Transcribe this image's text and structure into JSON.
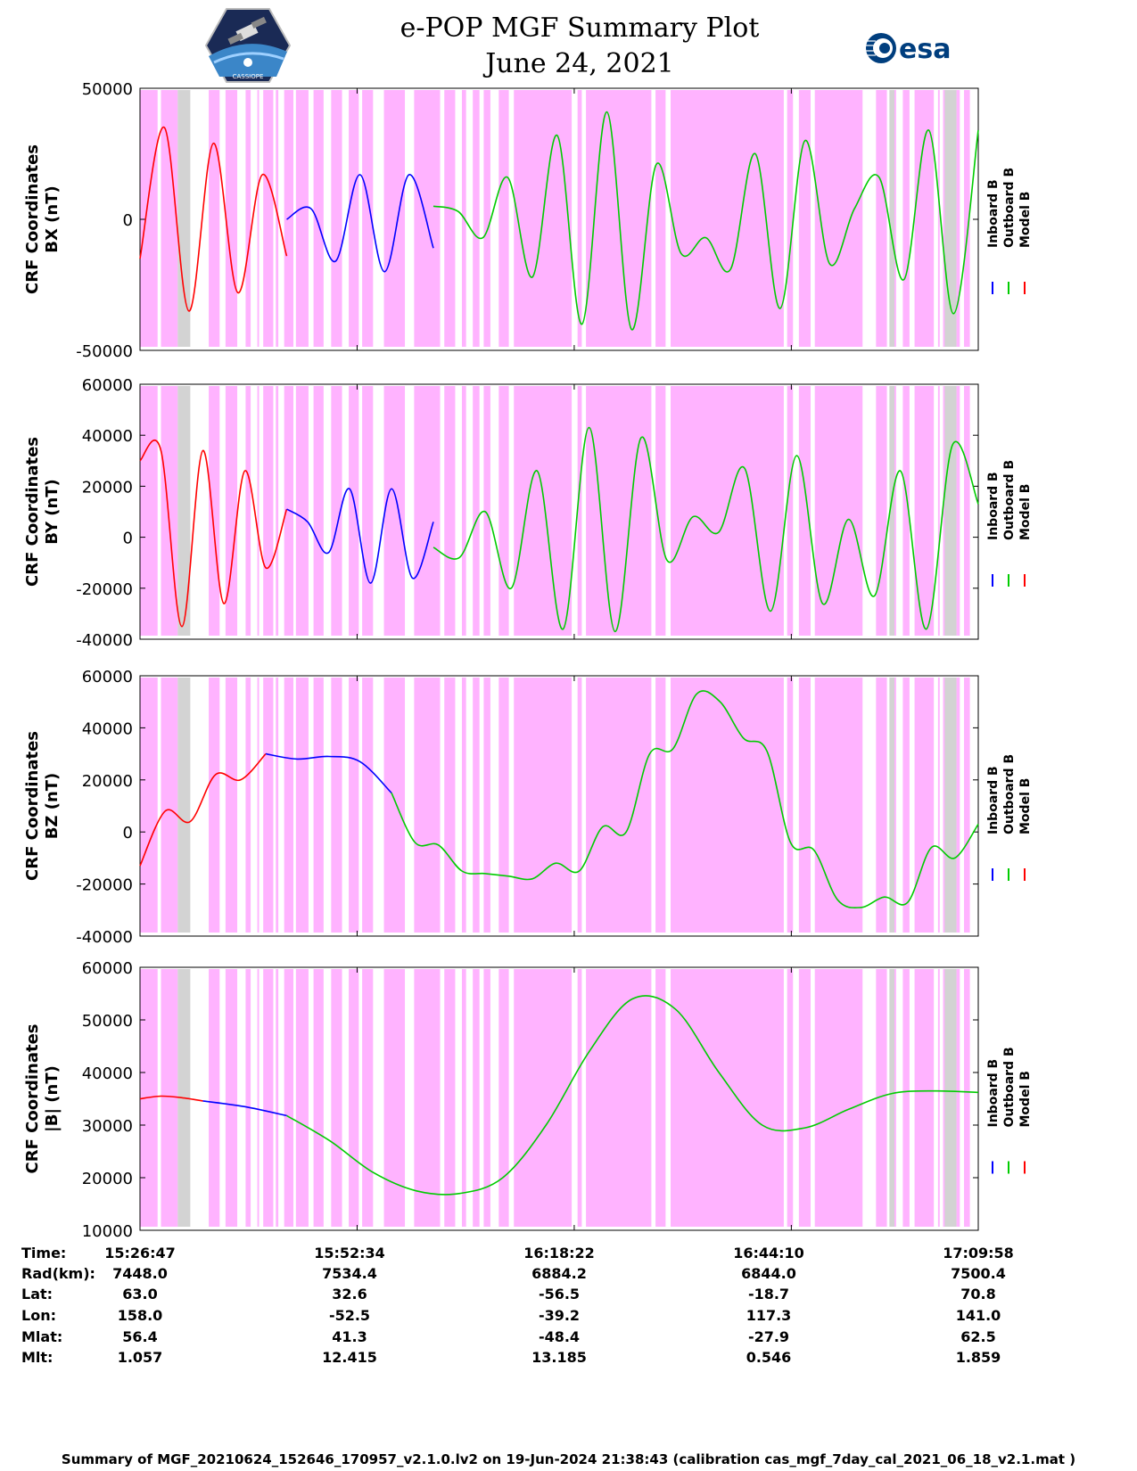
{
  "title": {
    "line1": "e-POP MGF Summary Plot",
    "line2": "June 24, 2021"
  },
  "logos": {
    "left_caption": "CASSIOPE",
    "right_text": "esa"
  },
  "colors": {
    "inboard": "#0000ff",
    "outboard": "#00cc00",
    "model": "#ff0000",
    "pink": "#ffb3ff",
    "gray": "#d3d3d3"
  },
  "legend": {
    "inboard": "Inboard B",
    "outboard": "Outboard B",
    "model": "Model B"
  },
  "chart_data": [
    {
      "type": "line",
      "panel": "BX",
      "ylabel_line1": "CRF Coordinates",
      "ylabel_line2": "BX (nT)",
      "ylim": [
        -50000,
        50000
      ],
      "yticks": [
        -50000,
        0,
        50000
      ],
      "ytick_labels": [
        "-50000",
        "0",
        "50000"
      ],
      "series": [
        {
          "name": "Model B",
          "color": "#ff0000",
          "x_range_min": [
            0,
            35
          ],
          "samples": [
            -15000,
            35000,
            -35000,
            29000,
            -28000,
            17000,
            -14000
          ]
        },
        {
          "name": "Inboard B",
          "color": "#0000ff",
          "x_range_min": [
            35,
            70
          ],
          "samples": [
            0,
            4000,
            -16000,
            17000,
            -20000,
            17000,
            -11000
          ]
        },
        {
          "name": "Outboard B",
          "color": "#00cc00",
          "x_range_min": [
            70,
            200
          ],
          "samples": [
            5000,
            3000,
            -7000,
            16000,
            -22000,
            32000,
            -40000,
            41000,
            -42000,
            21000,
            -13000,
            -7000,
            -19000,
            25000,
            -34000,
            30000,
            -17000,
            4000,
            16000,
            -23000,
            34000,
            -36000,
            34000
          ]
        }
      ]
    },
    {
      "type": "line",
      "panel": "BY",
      "ylabel_line1": "CRF Coordinates",
      "ylabel_line2": "BY (nT)",
      "ylim": [
        -40000,
        60000
      ],
      "yticks": [
        -40000,
        -20000,
        0,
        20000,
        40000,
        60000
      ],
      "ytick_labels": [
        "-40000",
        "-20000",
        "0",
        "20000",
        "40000",
        "60000"
      ],
      "series": [
        {
          "name": "Model B",
          "color": "#ff0000",
          "x_range_min": [
            0,
            35
          ],
          "samples": [
            30000,
            34000,
            -35000,
            34000,
            -26000,
            26000,
            -12000,
            11000
          ]
        },
        {
          "name": "Inboard B",
          "color": "#0000ff",
          "x_range_min": [
            35,
            70
          ],
          "samples": [
            11000,
            6000,
            -6000,
            19000,
            -18000,
            19000,
            -16000,
            6000
          ]
        },
        {
          "name": "Outboard B",
          "color": "#00cc00",
          "x_range_min": [
            70,
            200
          ],
          "samples": [
            -4000,
            -8000,
            10000,
            -20000,
            26000,
            -36000,
            43000,
            -37000,
            39000,
            -9000,
            8000,
            2000,
            27000,
            -29000,
            32000,
            -26000,
            7000,
            -23000,
            26000,
            -36000,
            36000,
            13000
          ]
        }
      ]
    },
    {
      "type": "line",
      "panel": "BZ",
      "ylabel_line1": "CRF Coordinates",
      "ylabel_line2": "BZ (nT)",
      "ylim": [
        -40000,
        60000
      ],
      "yticks": [
        -40000,
        -20000,
        0,
        20000,
        40000,
        60000
      ],
      "ytick_labels": [
        "-40000",
        "-20000",
        "0",
        "20000",
        "40000",
        "60000"
      ],
      "series": [
        {
          "name": "Model B",
          "color": "#ff0000",
          "x_range_min": [
            0,
            30
          ],
          "samples": [
            -13000,
            8000,
            4000,
            22000,
            20000,
            30000
          ]
        },
        {
          "name": "Inboard B",
          "color": "#0000ff",
          "x_range_min": [
            30,
            60
          ],
          "samples": [
            30000,
            28000,
            29000,
            27000,
            15000
          ]
        },
        {
          "name": "Outboard B",
          "color": "#00cc00",
          "x_range_min": [
            60,
            200
          ],
          "samples": [
            15000,
            -4000,
            -5000,
            -15000,
            -16000,
            -17000,
            -18000,
            -12000,
            -15000,
            2000,
            0,
            30000,
            32000,
            53000,
            50000,
            36000,
            31000,
            -4000,
            -7000,
            -26000,
            -29000,
            -25000,
            -27000,
            -6000,
            -10000,
            3000
          ]
        }
      ]
    },
    {
      "type": "line",
      "panel": "|B|",
      "ylabel_line1": "CRF Coordinates",
      "ylabel_line2": "|B| (nT)",
      "ylim": [
        10000,
        60000
      ],
      "yticks": [
        10000,
        20000,
        30000,
        40000,
        50000,
        60000
      ],
      "ytick_labels": [
        "10000",
        "20000",
        "30000",
        "40000",
        "50000",
        "60000"
      ],
      "series": [
        {
          "name": "Model B",
          "color": "#ff0000",
          "x_range_min": [
            0,
            15
          ],
          "samples": [
            35000,
            35500,
            35200,
            34600
          ]
        },
        {
          "name": "Inboard B",
          "color": "#0000ff",
          "x_range_min": [
            15,
            35
          ],
          "samples": [
            34600,
            33500,
            31800
          ]
        },
        {
          "name": "Outboard B",
          "color": "#00cc00",
          "x_range_min": [
            35,
            200
          ],
          "samples": [
            31800,
            27000,
            21000,
            17500,
            17000,
            20000,
            30000,
            44000,
            54000,
            52000,
            40000,
            30000,
            29500,
            33000,
            36000,
            36500,
            36200
          ]
        }
      ]
    }
  ],
  "time_axis": {
    "x_min_label": "15:26:47",
    "x_range_min": [
      0,
      200
    ],
    "tick_positions_min": [
      0,
      51.8,
      103.6,
      155.4,
      207.2
    ]
  },
  "readouts": {
    "labels": [
      "Time:",
      "Rad(km):",
      "Lat:",
      "Lon:",
      "Mlat:",
      "Mlt:"
    ],
    "columns": [
      {
        "time": "15:26:47",
        "rad": "7448.0",
        "lat": "63.0",
        "lon": "158.0",
        "mlat": "56.4",
        "mlt": "1.057"
      },
      {
        "time": "15:52:34",
        "rad": "7534.4",
        "lat": "32.6",
        "lon": "-52.5",
        "mlat": "41.3",
        "mlt": "12.415"
      },
      {
        "time": "16:18:22",
        "rad": "6884.2",
        "lat": "-56.5",
        "lon": "-39.2",
        "mlat": "-48.4",
        "mlt": "13.185"
      },
      {
        "time": "16:44:10",
        "rad": "6844.0",
        "lat": "-18.7",
        "lon": "117.3",
        "mlat": "-27.9",
        "mlt": "0.546"
      },
      {
        "time": "17:09:58",
        "rad": "7500.4",
        "lat": "70.8",
        "lon": "141.0",
        "mlat": "62.5",
        "mlt": "1.859"
      }
    ]
  },
  "footer": "Summary of MGF_20210624_152646_170957_v2.1.0.lv2 on 19-Jun-2024 21:38:43 (calibration cas_mgf_7day_cal_2021_06_18_v2.1.mat )"
}
